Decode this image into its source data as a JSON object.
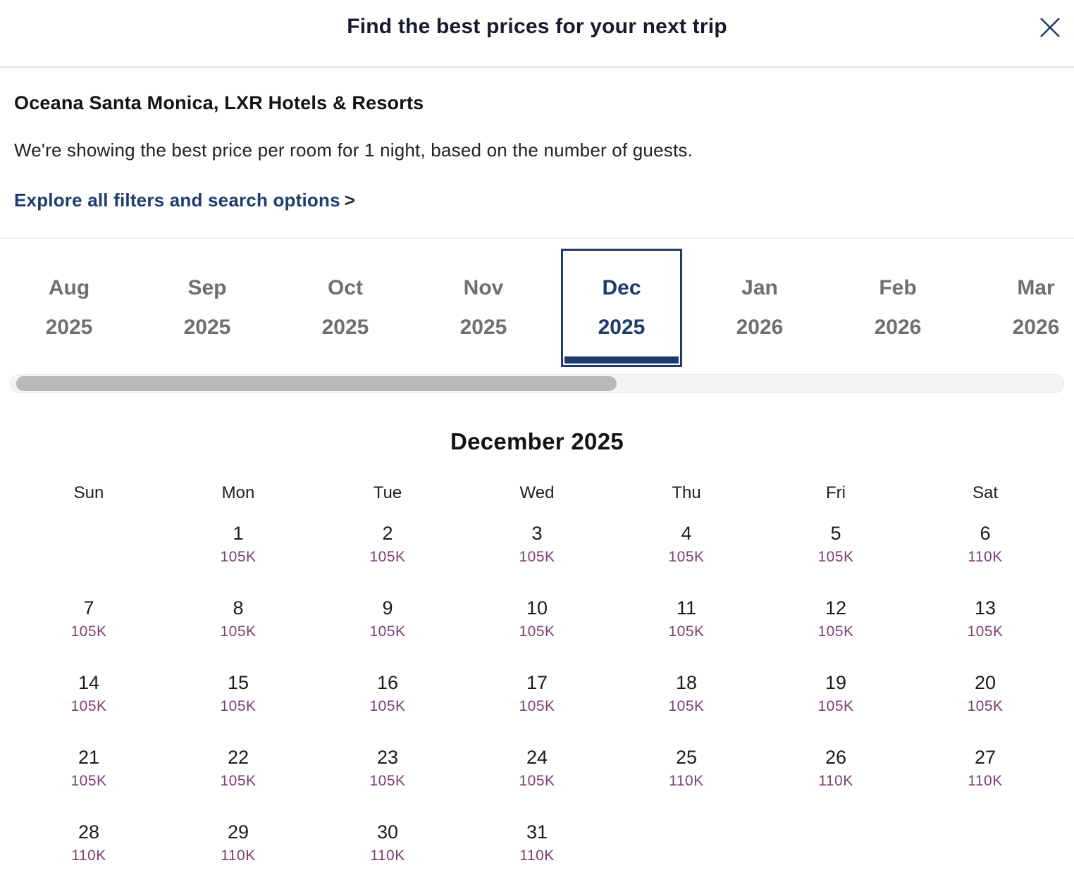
{
  "modal": {
    "title": "Find the best prices for your next trip"
  },
  "info": {
    "hotel_name": "Oceana Santa Monica, LXR Hotels & Resorts",
    "description": "We're showing the best price per room for 1 night, based on the number of guests.",
    "filters_link": "Explore all filters and search options",
    "filters_link_arrow": ">"
  },
  "month_tabs": {
    "selected_index": 4,
    "items": [
      {
        "month": "Aug",
        "year": "2025"
      },
      {
        "month": "Sep",
        "year": "2025"
      },
      {
        "month": "Oct",
        "year": "2025"
      },
      {
        "month": "Nov",
        "year": "2025"
      },
      {
        "month": "Dec",
        "year": "2025"
      },
      {
        "month": "Jan",
        "year": "2026"
      },
      {
        "month": "Feb",
        "year": "2026"
      },
      {
        "month": "Mar",
        "year": "2026"
      }
    ]
  },
  "calendar": {
    "heading": "December 2025",
    "weekdays": [
      "Sun",
      "Mon",
      "Tue",
      "Wed",
      "Thu",
      "Fri",
      "Sat"
    ],
    "weeks": [
      [
        null,
        {
          "day": "1",
          "price": "105K"
        },
        {
          "day": "2",
          "price": "105K"
        },
        {
          "day": "3",
          "price": "105K"
        },
        {
          "day": "4",
          "price": "105K"
        },
        {
          "day": "5",
          "price": "105K"
        },
        {
          "day": "6",
          "price": "110K"
        }
      ],
      [
        {
          "day": "7",
          "price": "105K"
        },
        {
          "day": "8",
          "price": "105K"
        },
        {
          "day": "9",
          "price": "105K"
        },
        {
          "day": "10",
          "price": "105K"
        },
        {
          "day": "11",
          "price": "105K"
        },
        {
          "day": "12",
          "price": "105K"
        },
        {
          "day": "13",
          "price": "105K"
        }
      ],
      [
        {
          "day": "14",
          "price": "105K"
        },
        {
          "day": "15",
          "price": "105K"
        },
        {
          "day": "16",
          "price": "105K"
        },
        {
          "day": "17",
          "price": "105K"
        },
        {
          "day": "18",
          "price": "105K"
        },
        {
          "day": "19",
          "price": "105K"
        },
        {
          "day": "20",
          "price": "105K"
        }
      ],
      [
        {
          "day": "21",
          "price": "105K"
        },
        {
          "day": "22",
          "price": "105K"
        },
        {
          "day": "23",
          "price": "105K"
        },
        {
          "day": "24",
          "price": "105K"
        },
        {
          "day": "25",
          "price": "110K"
        },
        {
          "day": "26",
          "price": "110K"
        },
        {
          "day": "27",
          "price": "110K"
        }
      ],
      [
        {
          "day": "28",
          "price": "110K"
        },
        {
          "day": "29",
          "price": "110K"
        },
        {
          "day": "30",
          "price": "110K"
        },
        {
          "day": "31",
          "price": "110K"
        },
        null,
        null,
        null
      ]
    ]
  },
  "colors": {
    "navy": "#1e3b6e",
    "price_purple": "#7e3e6f",
    "tab_gray": "#6f6f6f"
  }
}
